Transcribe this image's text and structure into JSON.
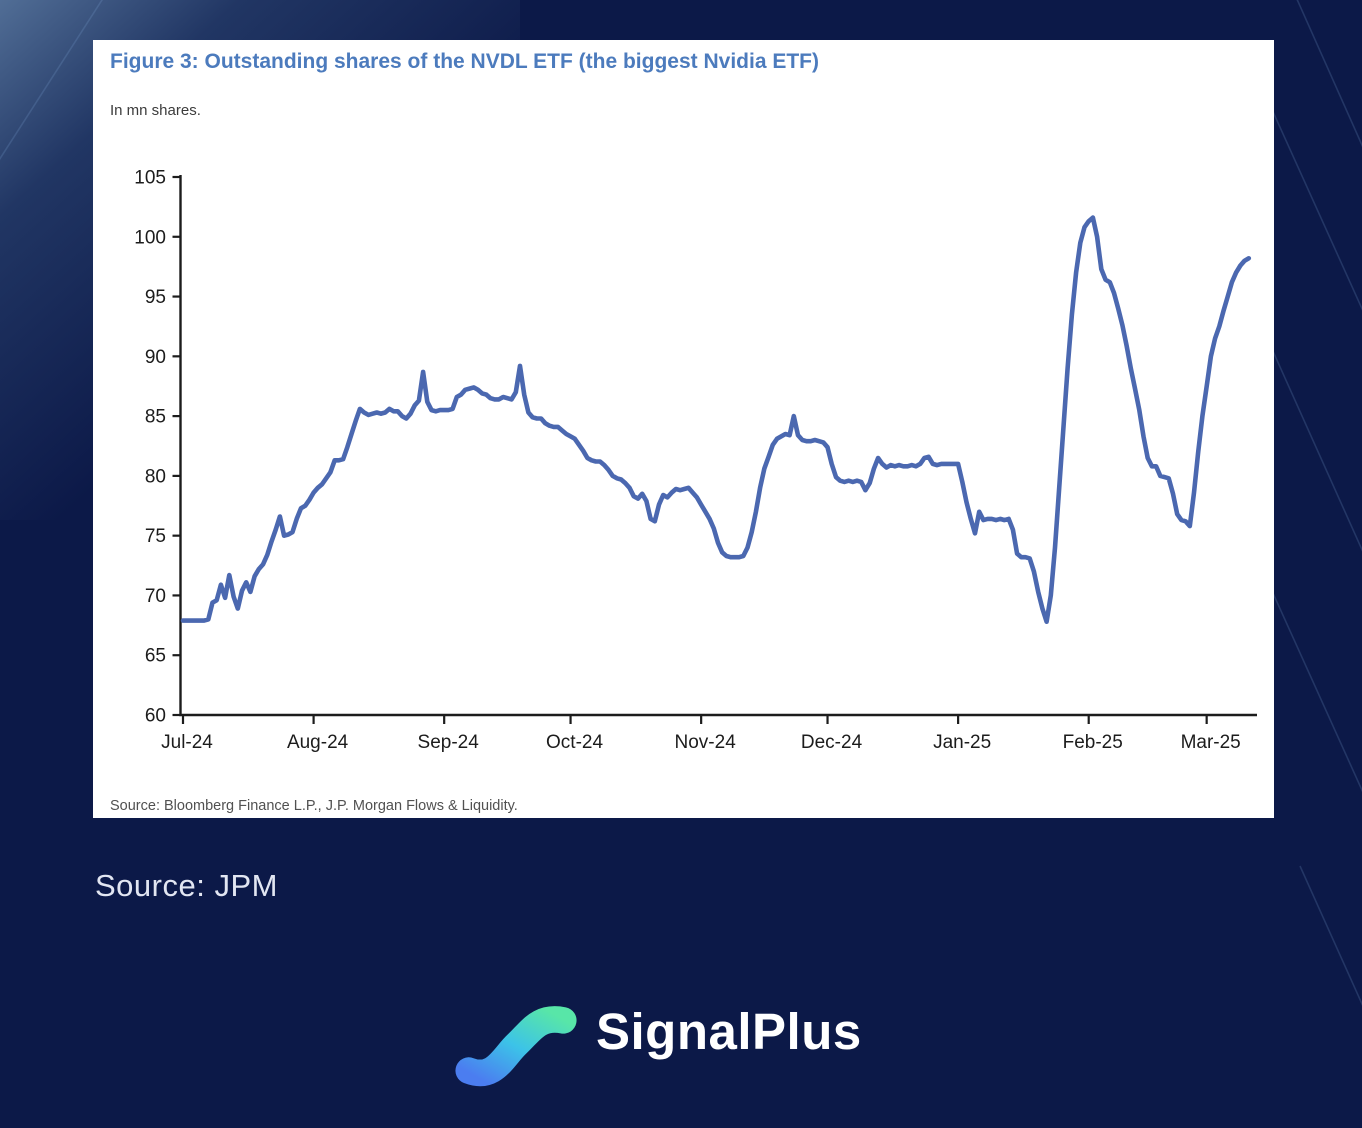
{
  "background": {
    "color": "#0c1948",
    "glow_color": "#6882a8"
  },
  "card": {
    "title": "Figure 3: Outstanding shares of the NVDL ETF (the biggest Nvidia ETF)",
    "subtitle": "In mn shares.",
    "source_note": "Source: Bloomberg Finance L.P., J.P. Morgan Flows & Liquidity.",
    "title_color": "#4c7bbd"
  },
  "caption": {
    "source_label": "Source: JPM"
  },
  "footer": {
    "brand": "SignalPlus"
  },
  "chart_data": {
    "type": "line",
    "title": "Figure 3: Outstanding shares of the NVDL ETF (the biggest Nvidia ETF)",
    "xlabel": "",
    "ylabel": "mn shares",
    "ylim": [
      60,
      105
    ],
    "ytick_step": 5,
    "grid": false,
    "legend": "none",
    "line_color": "#4b68b0",
    "axis_color": "#1c1c1c",
    "x_tick_labels": [
      "Jul-24",
      "Aug-24",
      "Sep-24",
      "Oct-24",
      "Nov-24",
      "Dec-24",
      "Jan-25",
      "Feb-25",
      "Mar-25"
    ],
    "x_tick_days": [
      0,
      31,
      62,
      92,
      123,
      153,
      184,
      215,
      243
    ],
    "x_domain_days": [
      0,
      254
    ],
    "series": [
      {
        "name": "NVDL ETF shares outstanding (mn)",
        "x_unit": "days since 2024-07-01",
        "points": [
          [
            0,
            67.9
          ],
          [
            1,
            67.9
          ],
          [
            2,
            67.9
          ],
          [
            3,
            67.9
          ],
          [
            4,
            67.9
          ],
          [
            5,
            67.9
          ],
          [
            6,
            68.0
          ],
          [
            7,
            69.4
          ],
          [
            8,
            69.6
          ],
          [
            9,
            70.9
          ],
          [
            10,
            69.8
          ],
          [
            11,
            71.7
          ],
          [
            12,
            69.9
          ],
          [
            13,
            68.9
          ],
          [
            14,
            70.4
          ],
          [
            15,
            71.1
          ],
          [
            16,
            70.3
          ],
          [
            17,
            71.6
          ],
          [
            18,
            72.2
          ],
          [
            19,
            72.6
          ],
          [
            20,
            73.4
          ],
          [
            21,
            74.5
          ],
          [
            22,
            75.5
          ],
          [
            23,
            76.6
          ],
          [
            24,
            75.0
          ],
          [
            25,
            75.1
          ],
          [
            26,
            75.3
          ],
          [
            27,
            76.4
          ],
          [
            28,
            77.3
          ],
          [
            29,
            77.5
          ],
          [
            30,
            78.0
          ],
          [
            31,
            78.6
          ],
          [
            32,
            79.0
          ],
          [
            33,
            79.3
          ],
          [
            34,
            79.8
          ],
          [
            35,
            80.3
          ],
          [
            36,
            81.3
          ],
          [
            37,
            81.3
          ],
          [
            38,
            81.4
          ],
          [
            39,
            82.4
          ],
          [
            40,
            83.5
          ],
          [
            41,
            84.6
          ],
          [
            42,
            85.6
          ],
          [
            43,
            85.3
          ],
          [
            44,
            85.1
          ],
          [
            45,
            85.2
          ],
          [
            46,
            85.3
          ],
          [
            47,
            85.2
          ],
          [
            48,
            85.3
          ],
          [
            49,
            85.6
          ],
          [
            50,
            85.4
          ],
          [
            51,
            85.4
          ],
          [
            52,
            85.0
          ],
          [
            53,
            84.8
          ],
          [
            54,
            85.2
          ],
          [
            55,
            85.9
          ],
          [
            56,
            86.3
          ],
          [
            57,
            88.7
          ],
          [
            58,
            86.2
          ],
          [
            59,
            85.5
          ],
          [
            60,
            85.4
          ],
          [
            61,
            85.5
          ],
          [
            62,
            85.5
          ],
          [
            63,
            85.5
          ],
          [
            64,
            85.6
          ],
          [
            65,
            86.6
          ],
          [
            66,
            86.8
          ],
          [
            67,
            87.2
          ],
          [
            68,
            87.3
          ],
          [
            69,
            87.4
          ],
          [
            70,
            87.2
          ],
          [
            71,
            86.9
          ],
          [
            72,
            86.8
          ],
          [
            73,
            86.5
          ],
          [
            74,
            86.4
          ],
          [
            75,
            86.4
          ],
          [
            76,
            86.6
          ],
          [
            77,
            86.5
          ],
          [
            78,
            86.4
          ],
          [
            79,
            87.0
          ],
          [
            80,
            89.2
          ],
          [
            81,
            86.8
          ],
          [
            82,
            85.3
          ],
          [
            83,
            84.9
          ],
          [
            84,
            84.8
          ],
          [
            85,
            84.8
          ],
          [
            86,
            84.4
          ],
          [
            87,
            84.2
          ],
          [
            88,
            84.1
          ],
          [
            89,
            84.1
          ],
          [
            90,
            83.8
          ],
          [
            91,
            83.5
          ],
          [
            92,
            83.3
          ],
          [
            93,
            83.1
          ],
          [
            94,
            82.6
          ],
          [
            95,
            82.1
          ],
          [
            96,
            81.5
          ],
          [
            97,
            81.3
          ],
          [
            98,
            81.2
          ],
          [
            99,
            81.2
          ],
          [
            100,
            80.9
          ],
          [
            101,
            80.5
          ],
          [
            102,
            80.0
          ],
          [
            103,
            79.8
          ],
          [
            104,
            79.7
          ],
          [
            105,
            79.4
          ],
          [
            106,
            79.0
          ],
          [
            107,
            78.3
          ],
          [
            108,
            78.1
          ],
          [
            109,
            78.5
          ],
          [
            110,
            77.9
          ],
          [
            111,
            76.4
          ],
          [
            112,
            76.2
          ],
          [
            113,
            77.6
          ],
          [
            114,
            78.4
          ],
          [
            115,
            78.2
          ],
          [
            116,
            78.6
          ],
          [
            117,
            78.9
          ],
          [
            118,
            78.8
          ],
          [
            119,
            78.9
          ],
          [
            120,
            79.0
          ],
          [
            121,
            78.6
          ],
          [
            122,
            78.2
          ],
          [
            123,
            77.6
          ],
          [
            124,
            77.0
          ],
          [
            125,
            76.4
          ],
          [
            126,
            75.6
          ],
          [
            127,
            74.4
          ],
          [
            128,
            73.6
          ],
          [
            129,
            73.3
          ],
          [
            130,
            73.2
          ],
          [
            131,
            73.2
          ],
          [
            132,
            73.2
          ],
          [
            133,
            73.3
          ],
          [
            134,
            74.0
          ],
          [
            135,
            75.3
          ],
          [
            136,
            77.0
          ],
          [
            137,
            79.0
          ],
          [
            138,
            80.6
          ],
          [
            139,
            81.6
          ],
          [
            140,
            82.6
          ],
          [
            141,
            83.1
          ],
          [
            142,
            83.3
          ],
          [
            143,
            83.5
          ],
          [
            144,
            83.4
          ],
          [
            145,
            85.0
          ],
          [
            146,
            83.4
          ],
          [
            147,
            83.0
          ],
          [
            148,
            82.9
          ],
          [
            149,
            82.9
          ],
          [
            150,
            83.0
          ],
          [
            151,
            82.9
          ],
          [
            152,
            82.8
          ],
          [
            153,
            82.4
          ],
          [
            154,
            81.0
          ],
          [
            155,
            79.9
          ],
          [
            156,
            79.6
          ],
          [
            157,
            79.5
          ],
          [
            158,
            79.6
          ],
          [
            159,
            79.5
          ],
          [
            160,
            79.6
          ],
          [
            161,
            79.5
          ],
          [
            162,
            78.8
          ],
          [
            163,
            79.4
          ],
          [
            164,
            80.6
          ],
          [
            165,
            81.5
          ],
          [
            166,
            81.0
          ],
          [
            167,
            80.7
          ],
          [
            168,
            80.9
          ],
          [
            169,
            80.8
          ],
          [
            170,
            80.9
          ],
          [
            171,
            80.8
          ],
          [
            172,
            80.8
          ],
          [
            173,
            80.9
          ],
          [
            174,
            80.8
          ],
          [
            175,
            81.0
          ],
          [
            176,
            81.5
          ],
          [
            177,
            81.6
          ],
          [
            178,
            81.0
          ],
          [
            179,
            80.9
          ],
          [
            180,
            81.0
          ],
          [
            181,
            81.0
          ],
          [
            182,
            81.0
          ],
          [
            183,
            81.0
          ],
          [
            184,
            81.0
          ],
          [
            185,
            79.5
          ],
          [
            186,
            77.8
          ],
          [
            187,
            76.4
          ],
          [
            188,
            75.2
          ],
          [
            189,
            77.0
          ],
          [
            190,
            76.3
          ],
          [
            191,
            76.4
          ],
          [
            192,
            76.4
          ],
          [
            193,
            76.3
          ],
          [
            194,
            76.4
          ],
          [
            195,
            76.3
          ],
          [
            196,
            76.4
          ],
          [
            197,
            75.5
          ],
          [
            198,
            73.5
          ],
          [
            199,
            73.2
          ],
          [
            200,
            73.2
          ],
          [
            201,
            73.1
          ],
          [
            202,
            72.0
          ],
          [
            203,
            70.3
          ],
          [
            204,
            68.9
          ],
          [
            205,
            67.8
          ],
          [
            206,
            70.0
          ],
          [
            207,
            74.0
          ],
          [
            208,
            79.0
          ],
          [
            209,
            84.0
          ],
          [
            210,
            89.0
          ],
          [
            211,
            93.5
          ],
          [
            212,
            97.0
          ],
          [
            213,
            99.5
          ],
          [
            214,
            100.8
          ],
          [
            215,
            101.3
          ],
          [
            216,
            101.6
          ],
          [
            217,
            100.0
          ],
          [
            218,
            97.3
          ],
          [
            219,
            96.4
          ],
          [
            220,
            96.2
          ],
          [
            221,
            95.3
          ],
          [
            222,
            94.0
          ],
          [
            223,
            92.6
          ],
          [
            224,
            90.9
          ],
          [
            225,
            89.0
          ],
          [
            226,
            87.3
          ],
          [
            227,
            85.5
          ],
          [
            228,
            83.3
          ],
          [
            229,
            81.5
          ],
          [
            230,
            80.8
          ],
          [
            231,
            80.8
          ],
          [
            232,
            80.0
          ],
          [
            233,
            79.9
          ],
          [
            234,
            79.8
          ],
          [
            235,
            78.5
          ],
          [
            236,
            76.8
          ],
          [
            237,
            76.3
          ],
          [
            238,
            76.2
          ],
          [
            239,
            75.8
          ],
          [
            240,
            78.6
          ],
          [
            241,
            82.0
          ],
          [
            242,
            85.0
          ],
          [
            243,
            87.5
          ],
          [
            244,
            90.0
          ],
          [
            245,
            91.5
          ],
          [
            246,
            92.5
          ],
          [
            247,
            93.8
          ],
          [
            248,
            95.0
          ],
          [
            249,
            96.2
          ],
          [
            250,
            97.0
          ],
          [
            251,
            97.6
          ],
          [
            252,
            98.0
          ],
          [
            253,
            98.2
          ]
        ]
      }
    ]
  }
}
